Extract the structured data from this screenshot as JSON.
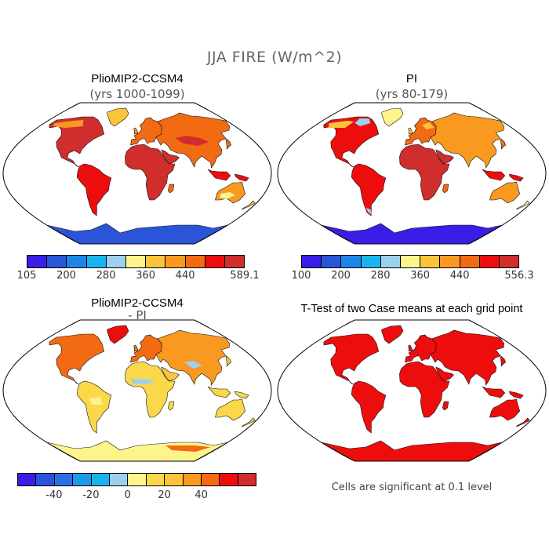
{
  "figure": {
    "title": "JJA FIRE (W/m^2)"
  },
  "panels": [
    {
      "id": "pliomip",
      "title": "PlioMIP2-CCSM4",
      "subtitle": "(yrs 1000-1099)",
      "colorbar": {
        "colors": [
          "#3a1ee6",
          "#2b55d9",
          "#1c86e8",
          "#18b4ee",
          "#9bd1ec",
          "#fdf58c",
          "#fbc43a",
          "#f9991f",
          "#f26a12",
          "#ee0d0d",
          "#d02d2d"
        ],
        "labels": [
          "105",
          "200",
          "280",
          "360",
          "440",
          "589.1"
        ]
      }
    },
    {
      "id": "pi",
      "title": "PI",
      "subtitle": "(yrs 80-179)",
      "colorbar": {
        "colors": [
          "#3a1ee6",
          "#2b55d9",
          "#1c86e8",
          "#18b4ee",
          "#9bd1ec",
          "#fdf58c",
          "#fbc43a",
          "#f9991f",
          "#f26a12",
          "#ee0d0d",
          "#d02d2d"
        ],
        "labels": [
          "100",
          "200",
          "280",
          "360",
          "440",
          "556.3"
        ]
      }
    },
    {
      "id": "diff",
      "title": "PlioMIP2-CCSM4",
      "subtitle": "- PI",
      "colorbar": {
        "colors": [
          "#3a1ee6",
          "#2b55d9",
          "#2b6fe0",
          "#1c9ae8",
          "#18b4ee",
          "#9bd1ec",
          "#fdf58c",
          "#fbd74a",
          "#fbc43a",
          "#f9991f",
          "#f26a12",
          "#ee0d0d",
          "#d02d2d"
        ],
        "labels": [
          "-40",
          "-20",
          "0",
          "20",
          "40"
        ]
      }
    },
    {
      "id": "ttest",
      "title": "T-Test of two Case means at each grid point",
      "note": "Cells are significant at 0.1 level",
      "color": "#ee0d0d"
    }
  ]
}
